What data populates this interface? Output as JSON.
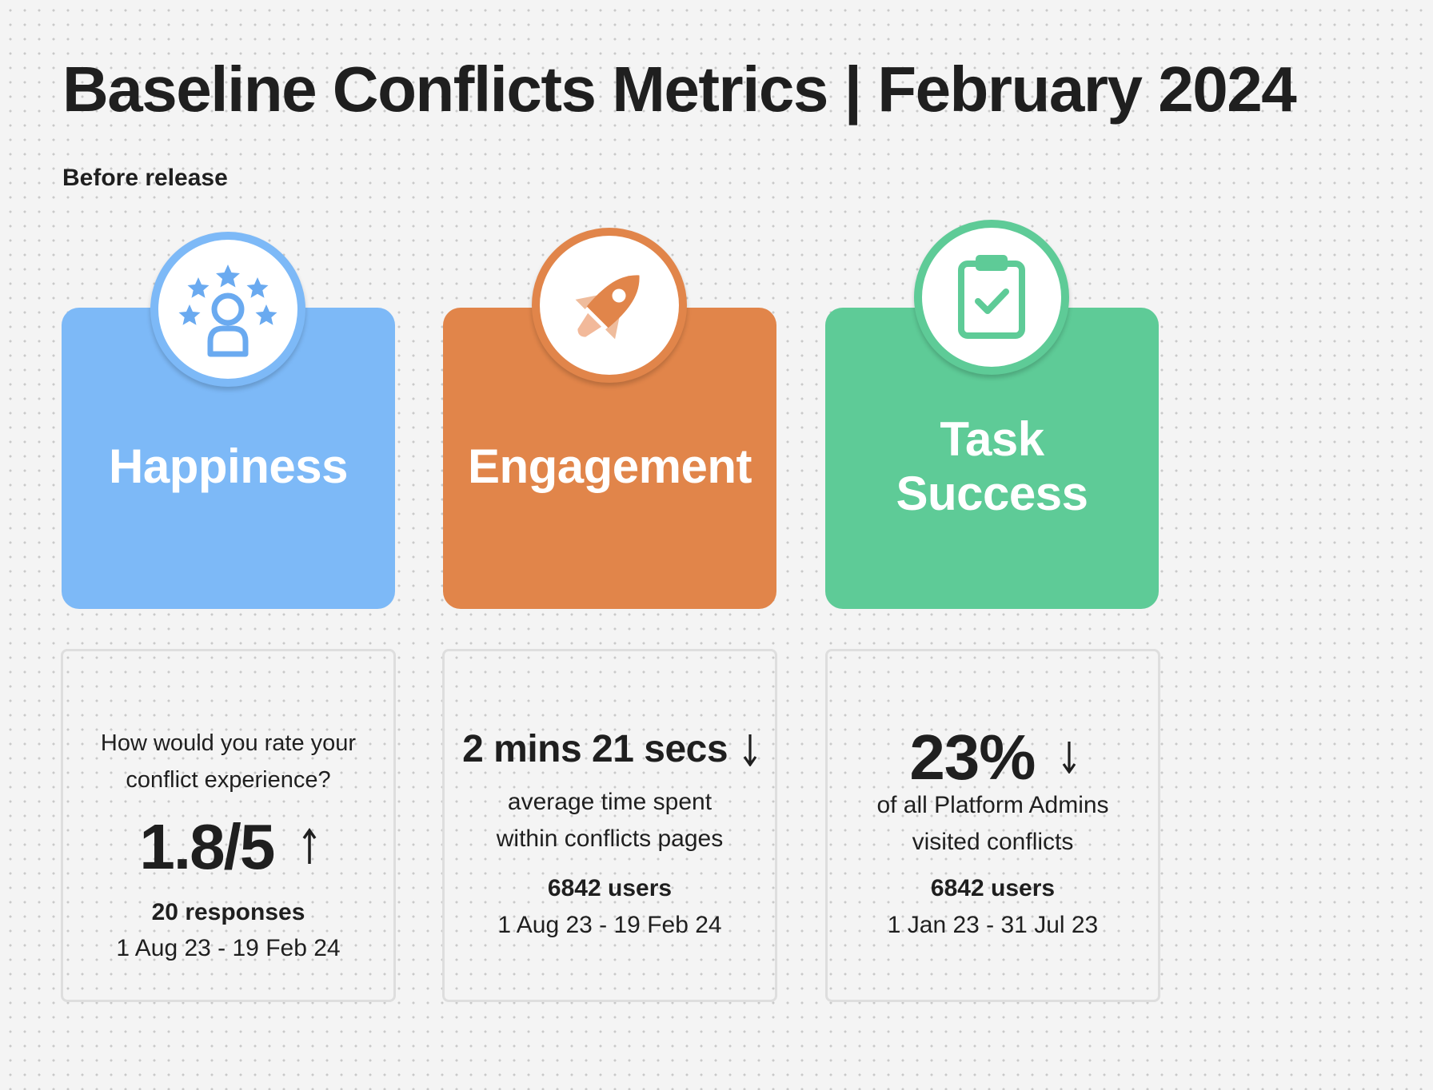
{
  "title": "Baseline Conflicts Metrics | February 2024",
  "subtitle": "Before release",
  "colors": {
    "happiness": "#7db9f7",
    "engagement": "#e1854a",
    "task_success": "#5ecb97"
  },
  "cards": {
    "happiness": {
      "label": "Happiness",
      "icon": "rating-stars-user-icon"
    },
    "engagement": {
      "label": "Engagement",
      "icon": "rocket-icon"
    },
    "task_success": {
      "label_line1": "Task",
      "label_line2": "Success",
      "icon": "clipboard-check-icon"
    }
  },
  "stats": {
    "happiness": {
      "question_line1": "How would you rate your",
      "question_line2": "conflict experience?",
      "value": "1.8/5",
      "trend": "up",
      "count": "20 responses",
      "period": "1 Aug 23 - 19 Feb 24"
    },
    "engagement": {
      "value": "2 mins 21 secs",
      "trend": "down",
      "desc_line1": "average time spent",
      "desc_line2": "within conflicts pages",
      "count": "6842 users",
      "period": "1 Aug 23 - 19 Feb 24"
    },
    "task_success": {
      "value": "23%",
      "trend": "down",
      "desc_line1": "of all Platform Admins",
      "desc_line2": "visited conflicts",
      "count": "6842 users",
      "period": "1 Jan 23 - 31 Jul 23"
    }
  }
}
